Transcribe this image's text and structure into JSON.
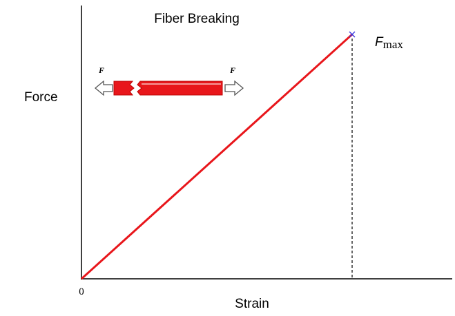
{
  "title": "Fiber Breaking",
  "axes": {
    "y_label": "Force",
    "x_label": "Strain",
    "origin": "0"
  },
  "annotations": {
    "fiber_left": "F",
    "fiber_right": "F",
    "max_symbol": "F",
    "max_subscript": "max"
  }
}
